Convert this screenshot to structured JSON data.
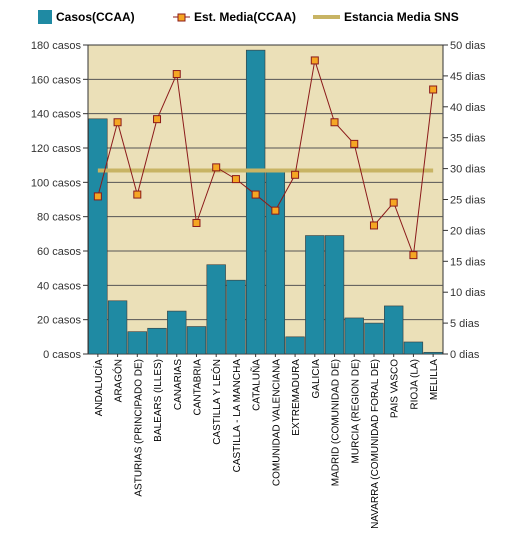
{
  "chart_data": {
    "type": "bar",
    "categories": [
      "ANDALUCÍA",
      "ARAGÓN",
      "ASTURIAS (PRINCIPADO DE)",
      "BALEARS (ILLES)",
      "CANARIAS",
      "CANTABRIA",
      "CASTILLA Y LEÓN",
      "CASTILLA - LA MANCHA",
      "CATALUÑA",
      "COMUNIDAD VALENCIANA",
      "EXTREMADURA",
      "GALICIA",
      "MADRID (COMUNIDAD DE)",
      "MURCIA (REGION DE)",
      "NAVARRA (COMUNIDAD FORAL DE)",
      "PAIS VASCO",
      "RIOJA (LA)",
      "MELILLA"
    ],
    "series": [
      {
        "name": "Casos(CCAA)",
        "kind": "bar",
        "axis": "left",
        "color": "#1f8aa3",
        "values": [
          137,
          31,
          13,
          15,
          25,
          16,
          52,
          43,
          177,
          107,
          10,
          69,
          69,
          21,
          18,
          28,
          7,
          1
        ]
      },
      {
        "name": "Est.  Media(CCAA)",
        "kind": "line",
        "axis": "right",
        "color": "#8b1a1a",
        "marker_color": "#f5a623",
        "values": [
          25.5,
          37.5,
          25.8,
          38.0,
          45.3,
          21.2,
          30.2,
          28.3,
          25.8,
          23.2,
          29.0,
          47.5,
          37.5,
          34.0,
          20.8,
          24.5,
          16.0,
          42.8
        ]
      },
      {
        "name": "Estancia Media SNS",
        "kind": "reference",
        "axis": "right",
        "color": "#c8b464",
        "value": 29.7
      }
    ],
    "left_axis": {
      "ticks": [
        "0 casos",
        "20 casos",
        "40 casos",
        "60 casos",
        "80 casos",
        "100 casos",
        "120 casos",
        "140 casos",
        "160 casos",
        "180 casos"
      ],
      "ylim": [
        0,
        180
      ],
      "step": 20
    },
    "right_axis": {
      "ticks": [
        "0 dias",
        "5 dias",
        "10 dias",
        "15 dias",
        "20 dias",
        "25 dias",
        "30 dias",
        "35 dias",
        "40 dias",
        "45 dias",
        "50 dias"
      ],
      "ylim": [
        0,
        50
      ],
      "step": 5
    },
    "grid": true,
    "legend_position": "top",
    "plot_background": "#ebe0b8"
  }
}
